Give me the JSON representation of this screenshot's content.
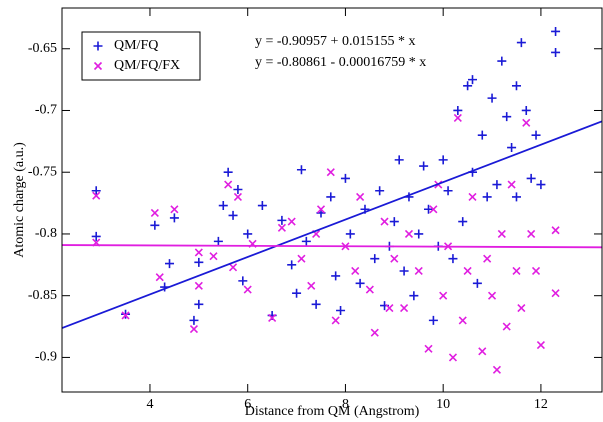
{
  "chart_data": {
    "type": "scatter",
    "xlabel": "Distance from QM (Angstrom)",
    "ylabel": "Atomic charge (a.u.)",
    "xlim": [
      2.2,
      13.25
    ],
    "ylim": [
      -0.928,
      -0.617
    ],
    "xticks": [
      4,
      6,
      8,
      10,
      12
    ],
    "yticks": [
      -0.9,
      -0.85,
      -0.8,
      -0.75,
      -0.7,
      -0.65
    ],
    "legend": "upper left",
    "series": [
      {
        "name": "QM/FQ",
        "color": "#1a1ad6",
        "marker": "plus",
        "fit": {
          "label": "y = -0.90957 + 0.015155 * x",
          "intercept": -0.90957,
          "slope": 0.015155
        },
        "x": [
          2.9,
          2.9,
          3.5,
          4.1,
          4.3,
          4.4,
          4.5,
          4.9,
          5.0,
          5.0,
          5.4,
          5.5,
          5.6,
          5.7,
          5.8,
          5.9,
          6.0,
          6.3,
          6.5,
          6.7,
          6.9,
          7.0,
          7.1,
          7.2,
          7.4,
          7.5,
          7.7,
          7.8,
          7.9,
          8.0,
          8.1,
          8.3,
          8.4,
          8.6,
          8.7,
          8.8,
          8.9,
          9.0,
          9.1,
          9.2,
          9.3,
          9.4,
          9.5,
          9.6,
          9.7,
          9.8,
          9.9,
          10.0,
          10.1,
          10.2,
          10.3,
          10.4,
          10.5,
          10.6,
          10.7,
          10.8,
          10.9,
          11.0,
          11.1,
          11.2,
          11.3,
          11.4,
          11.5,
          11.6,
          11.7,
          11.8,
          11.9,
          12.0,
          12.3,
          12.3,
          10.6,
          11.5
        ],
        "values": [
          -0.765,
          -0.802,
          -0.865,
          -0.793,
          -0.843,
          -0.824,
          -0.787,
          -0.87,
          -0.857,
          -0.823,
          -0.806,
          -0.777,
          -0.75,
          -0.785,
          -0.764,
          -0.838,
          -0.8,
          -0.777,
          -0.866,
          -0.789,
          -0.825,
          -0.848,
          -0.748,
          -0.806,
          -0.857,
          -0.783,
          -0.77,
          -0.834,
          -0.862,
          -0.755,
          -0.8,
          -0.84,
          -0.78,
          -0.82,
          -0.765,
          -0.858,
          -0.81,
          -0.79,
          -0.74,
          -0.83,
          -0.77,
          -0.85,
          -0.8,
          -0.745,
          -0.78,
          -0.87,
          -0.81,
          -0.74,
          -0.765,
          -0.82,
          -0.7,
          -0.79,
          -0.68,
          -0.75,
          -0.84,
          -0.72,
          -0.77,
          -0.69,
          -0.76,
          -0.66,
          -0.705,
          -0.73,
          -0.68,
          -0.645,
          -0.7,
          -0.755,
          -0.72,
          -0.76,
          -0.636,
          -0.653,
          -0.675,
          -0.77
        ]
      },
      {
        "name": "QM/FQ/FX",
        "color": "#e01ee0",
        "marker": "x",
        "fit": {
          "label": "y = -0.80861 - 0.00016759 * x",
          "intercept": -0.80861,
          "slope": -0.00016759
        },
        "x": [
          2.9,
          2.9,
          3.5,
          4.1,
          4.2,
          4.5,
          4.9,
          5.0,
          5.0,
          5.3,
          5.6,
          5.7,
          5.8,
          6.0,
          6.1,
          6.5,
          6.7,
          6.9,
          7.1,
          7.3,
          7.5,
          7.7,
          7.8,
          8.0,
          8.2,
          8.3,
          8.5,
          8.6,
          8.8,
          9.0,
          9.2,
          9.3,
          9.5,
          9.7,
          9.8,
          10.0,
          10.1,
          10.2,
          10.3,
          10.4,
          10.5,
          10.6,
          10.8,
          10.9,
          11.0,
          11.1,
          11.2,
          11.3,
          11.4,
          11.5,
          11.6,
          11.7,
          11.8,
          11.9,
          12.0,
          12.3,
          12.3,
          9.9,
          8.9,
          7.4
        ],
        "values": [
          -0.769,
          -0.807,
          -0.866,
          -0.783,
          -0.835,
          -0.78,
          -0.877,
          -0.815,
          -0.842,
          -0.818,
          -0.76,
          -0.827,
          -0.77,
          -0.845,
          -0.808,
          -0.868,
          -0.795,
          -0.79,
          -0.82,
          -0.842,
          -0.78,
          -0.75,
          -0.87,
          -0.81,
          -0.83,
          -0.77,
          -0.845,
          -0.88,
          -0.79,
          -0.82,
          -0.86,
          -0.8,
          -0.83,
          -0.893,
          -0.78,
          -0.85,
          -0.81,
          -0.9,
          -0.706,
          -0.87,
          -0.83,
          -0.77,
          -0.895,
          -0.82,
          -0.85,
          -0.91,
          -0.8,
          -0.875,
          -0.76,
          -0.83,
          -0.86,
          -0.71,
          -0.8,
          -0.83,
          -0.89,
          -0.797,
          -0.848,
          -0.76,
          -0.86,
          -0.8
        ]
      }
    ]
  }
}
